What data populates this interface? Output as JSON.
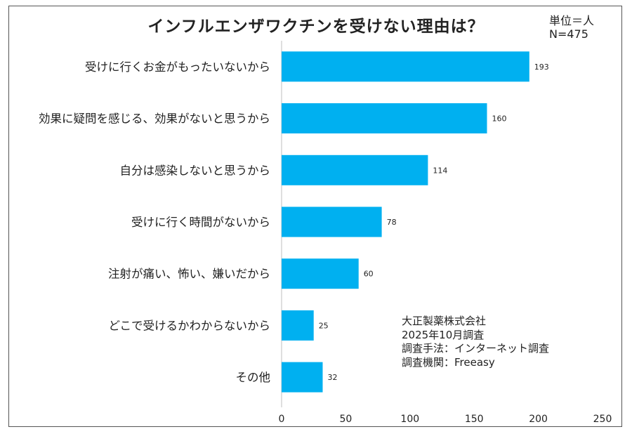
{
  "title": "インフルエンザワクチンを受けない理由は？",
  "unit_line1": "単位＝人",
  "unit_line2": "N=475",
  "source_notes": [
    "大正製薬株式会社",
    "2025年10月調査",
    "調査手法：インターネット調査",
    "調査機関：Freeasy"
  ],
  "colors": {
    "bar": "#00b0f0",
    "axis": "#bfbfbf"
  },
  "chart_data": {
    "type": "bar",
    "orientation": "horizontal",
    "categories": [
      "受けに行くお金がもったいないから",
      "効果に疑問を感じる、効果がないと思うから",
      "自分は感染しないと思うから",
      "受けに行く時間がないから",
      "注射が痛い、怖い、嫌いだから",
      "どこで受けるかわからないから",
      "その他"
    ],
    "values": [
      193,
      160,
      114,
      78,
      60,
      25,
      32
    ],
    "xlim": [
      0,
      250
    ],
    "xticks": [
      0,
      50,
      100,
      150,
      200,
      250
    ],
    "grid": false,
    "legend": "none"
  }
}
